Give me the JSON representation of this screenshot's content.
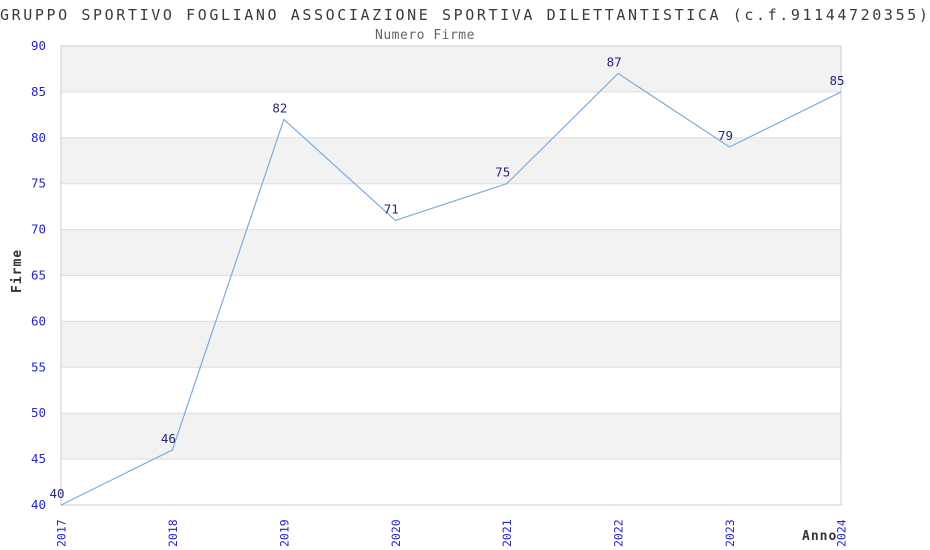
{
  "chart_data": {
    "type": "line",
    "title": "GRUPPO SPORTIVO FOGLIANO ASSOCIAZIONE SPORTIVA DILETTANTISTICA (c.f.91144720355)",
    "subtitle": "Numero Firme",
    "xlabel": "Anno",
    "ylabel": "Firme",
    "categories": [
      "2017",
      "2018",
      "2019",
      "2020",
      "2021",
      "2022",
      "2023",
      "2024"
    ],
    "values": [
      40,
      46,
      82,
      71,
      75,
      87,
      79,
      85
    ],
    "ylim": [
      40,
      90
    ],
    "ytick_step": 5,
    "grid": true,
    "banded_background": true,
    "legend_position": "none",
    "point_labels_visible": true,
    "colors": {
      "line": "#7aaddc",
      "tick_label": "#2525cd",
      "data_label": "#26267a",
      "band": "#f2f2f2",
      "gridline": "#dddddd",
      "border": "#cccccc",
      "title": "#3a3a3a",
      "subtitle": "#666666",
      "axis_label": "#333333",
      "background": "#ffffff"
    }
  }
}
